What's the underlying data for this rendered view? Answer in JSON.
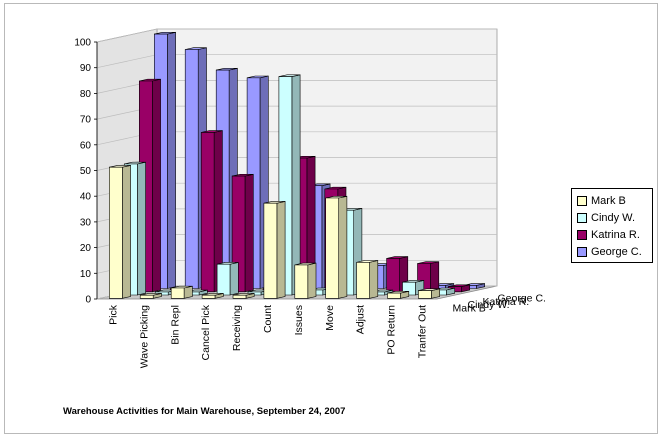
{
  "chart_data": {
    "type": "bar",
    "title": "Warehouse Activities for Main Warehouse, September 24, 2007",
    "categories": [
      "Pick",
      "Wave Picking",
      "Bin Repl",
      "Cancel Pick",
      "Receiving",
      "Count",
      "Issues",
      "Move",
      "Adjust",
      "PO Return",
      "Tranfer Out"
    ],
    "series": [
      {
        "name": "Mark B",
        "color": "#ffffcc",
        "values": [
          51,
          1,
          4,
          1,
          1,
          37,
          13,
          39,
          14,
          2,
          3
        ]
      },
      {
        "name": "Cindy W.",
        "color": "#ccffff",
        "values": [
          51,
          1,
          1,
          12,
          0,
          85,
          2,
          33,
          1,
          5,
          2
        ]
      },
      {
        "name": "Katrina R.",
        "color": "#990066",
        "values": [
          82,
          0,
          62,
          45,
          1,
          52,
          40,
          1,
          13,
          11,
          2
        ]
      },
      {
        "name": "George C.",
        "color": "#9999ff",
        "values": [
          99,
          93,
          85,
          82,
          1,
          40,
          1,
          9,
          1,
          1,
          1
        ]
      }
    ],
    "yticks": [
      0,
      10,
      20,
      30,
      40,
      50,
      60,
      70,
      80,
      90,
      100
    ],
    "ylim": [
      0,
      100
    ],
    "grid": true,
    "legend_position": "right"
  }
}
